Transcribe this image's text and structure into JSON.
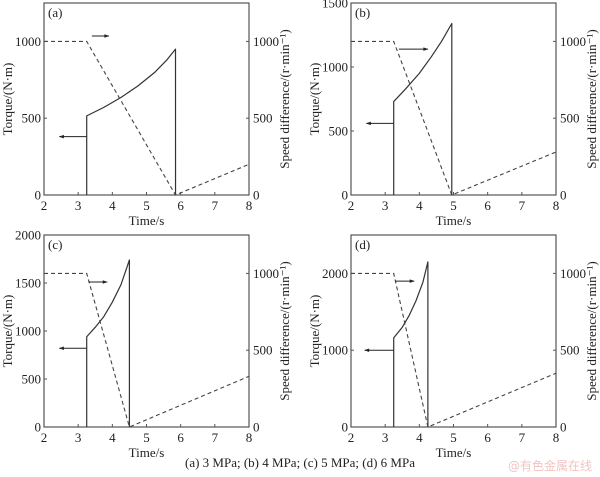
{
  "chart_data": [
    {
      "type": "line",
      "panel_label": "(a)",
      "xlabel": "Time/s",
      "ylabel": "Torque/(N·m)",
      "y2label": "Speed difference/(r·min⁻¹)",
      "xlim": [
        2,
        8
      ],
      "ylim": [
        0,
        1250
      ],
      "y2lim": [
        0,
        1250
      ],
      "xticks": [
        "2",
        "3",
        "4",
        "5",
        "6",
        "7",
        "8"
      ],
      "yticks": [
        "0",
        "500",
        "1000"
      ],
      "y2ticks": [
        "0",
        "500",
        "1000"
      ],
      "series": [
        {
          "name": "Torque",
          "axis": "left",
          "style": "solid",
          "x": [
            3.25,
            3.25,
            3.75,
            4.25,
            4.75,
            5.25,
            5.6,
            5.85,
            5.85
          ],
          "y": [
            0,
            515,
            570,
            635,
            710,
            800,
            880,
            950,
            0
          ]
        },
        {
          "name": "Speed difference",
          "axis": "right",
          "style": "dashed",
          "x": [
            2,
            3.25,
            5.85,
            8
          ],
          "y": [
            1000,
            1000,
            0,
            200
          ]
        }
      ],
      "arrows": [
        {
          "points_to": "right",
          "x": [
            3.4,
            3.9
          ],
          "y_axis_value": 1035,
          "axis": "left"
        },
        {
          "points_to": "left",
          "x": [
            3.25,
            2.45
          ],
          "y_axis_value": 380,
          "axis": "left"
        }
      ]
    },
    {
      "type": "line",
      "panel_label": "(b)",
      "xlabel": "Time/s",
      "ylabel": "Torque/(N·m)",
      "y2label": "Speed difference/(r·min⁻¹)",
      "xlim": [
        2,
        8
      ],
      "ylim": [
        0,
        1500
      ],
      "y2lim": [
        0,
        1250
      ],
      "xticks": [
        "2",
        "3",
        "4",
        "5",
        "6",
        "7",
        "8"
      ],
      "yticks": [
        "0",
        "500",
        "1000",
        "1500"
      ],
      "y2ticks": [
        "0",
        "500",
        "1000"
      ],
      "series": [
        {
          "name": "Torque",
          "axis": "left",
          "style": "solid",
          "x": [
            3.25,
            3.25,
            3.6,
            4.0,
            4.35,
            4.65,
            4.95,
            4.95
          ],
          "y": [
            0,
            730,
            830,
            950,
            1080,
            1200,
            1340,
            0
          ]
        },
        {
          "name": "Speed difference",
          "axis": "right",
          "style": "dashed",
          "x": [
            2,
            3.25,
            4.95,
            8
          ],
          "y": [
            1000,
            1000,
            0,
            280
          ]
        }
      ],
      "arrows": [
        {
          "points_to": "right",
          "x": [
            3.4,
            4.25
          ],
          "y_axis_value": 1140,
          "axis": "left"
        },
        {
          "points_to": "left",
          "x": [
            3.25,
            2.45
          ],
          "y_axis_value": 560,
          "axis": "left"
        }
      ]
    },
    {
      "type": "line",
      "panel_label": "(c)",
      "xlabel": "Time/s",
      "ylabel": "Torque/(N·m)",
      "y2label": "Speed difference/(r·min⁻¹)",
      "xlim": [
        2,
        8
      ],
      "ylim": [
        0,
        2000
      ],
      "y2lim": [
        0,
        1250
      ],
      "xticks": [
        "2",
        "3",
        "4",
        "5",
        "6",
        "7",
        "8"
      ],
      "yticks": [
        "0",
        "500",
        "1000",
        "1500",
        "2000"
      ],
      "y2ticks": [
        "0",
        "500",
        "1000"
      ],
      "series": [
        {
          "name": "Torque",
          "axis": "left",
          "style": "solid",
          "x": [
            3.25,
            3.25,
            3.5,
            3.75,
            4.0,
            4.25,
            4.5,
            4.5
          ],
          "y": [
            0,
            940,
            1040,
            1150,
            1300,
            1480,
            1740,
            0
          ]
        },
        {
          "name": "Speed difference",
          "axis": "right",
          "style": "dashed",
          "x": [
            2,
            3.25,
            4.5,
            8
          ],
          "y": [
            1000,
            1000,
            0,
            330
          ]
        }
      ],
      "arrows": [
        {
          "points_to": "right",
          "x": [
            3.3,
            3.85
          ],
          "y_axis_value": 1510,
          "axis": "left"
        },
        {
          "points_to": "left",
          "x": [
            3.25,
            2.45
          ],
          "y_axis_value": 820,
          "axis": "left"
        }
      ]
    },
    {
      "type": "line",
      "panel_label": "(d)",
      "xlabel": "Time/s",
      "ylabel": "Torque/(N·m)",
      "y2label": "Speed difference/(r·min⁻¹)",
      "xlim": [
        2,
        8
      ],
      "ylim": [
        0,
        2500
      ],
      "y2lim": [
        0,
        1250
      ],
      "xticks": [
        "2",
        "3",
        "4",
        "5",
        "6",
        "7",
        "8"
      ],
      "yticks": [
        "0",
        "1000",
        "2000"
      ],
      "y2ticks": [
        "0",
        "500",
        "1000"
      ],
      "series": [
        {
          "name": "Torque",
          "axis": "left",
          "style": "solid",
          "x": [
            3.25,
            3.25,
            3.5,
            3.7,
            3.9,
            4.1,
            4.25,
            4.25
          ],
          "y": [
            0,
            1160,
            1300,
            1450,
            1640,
            1880,
            2150,
            0
          ]
        },
        {
          "name": "Speed difference",
          "axis": "right",
          "style": "dashed",
          "x": [
            2,
            3.25,
            4.25,
            8
          ],
          "y": [
            1000,
            1000,
            0,
            350
          ]
        }
      ],
      "arrows": [
        {
          "points_to": "right",
          "x": [
            3.3,
            3.85
          ],
          "y_axis_value": 1900,
          "axis": "left"
        },
        {
          "points_to": "left",
          "x": [
            3.25,
            2.4
          ],
          "y_axis_value": 1000,
          "axis": "left"
        }
      ]
    }
  ],
  "caption": "(a)  3  MPa;  (b)  4  MPa;  (c)  5  MPa; (d) 6 MPa",
  "watermark": "@有色金属在线"
}
